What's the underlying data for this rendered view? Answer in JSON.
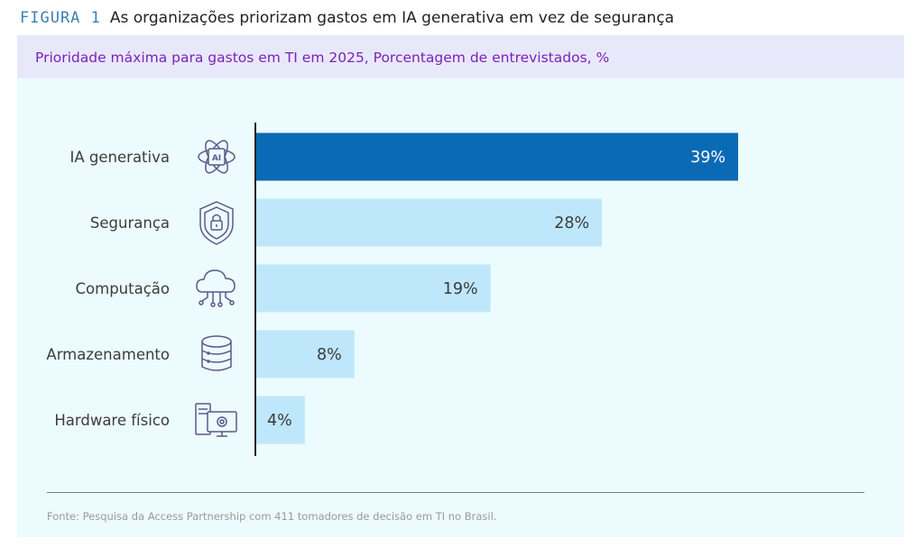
{
  "figure": {
    "label": "FIGURA 1",
    "title": "As organizações priorizam gastos em IA generativa em vez de segurança"
  },
  "subtitle": "Prioridade máxima para gastos em TI em 2025, Porcentagem de entrevistados, %",
  "source": "Fonte: Pesquisa da Access Partnership com 411 tomadores de decisão em TI no Brasil.",
  "colors": {
    "highlight": "#0a6ab5",
    "bar": "#bfe7fb",
    "highlight_text": "#ffffff",
    "bar_text": "#3a3a3a",
    "icon": "#5a5a8a"
  },
  "icons": [
    "ai-atom-icon",
    "shield-lock-icon",
    "cloud-network-icon",
    "database-icon",
    "hardware-computer-icon"
  ],
  "chart_data": {
    "type": "bar",
    "orientation": "horizontal",
    "categories": [
      "IA generativa",
      "Segurança",
      "Computação",
      "Armazenamento",
      "Hardware físico"
    ],
    "values": [
      39,
      28,
      19,
      8,
      4
    ],
    "data_labels": [
      "39%",
      "28%",
      "19%",
      "8%",
      "4%"
    ],
    "highlighted_index": 0,
    "xlim": [
      0,
      39
    ],
    "grid": false,
    "legend": "none"
  }
}
